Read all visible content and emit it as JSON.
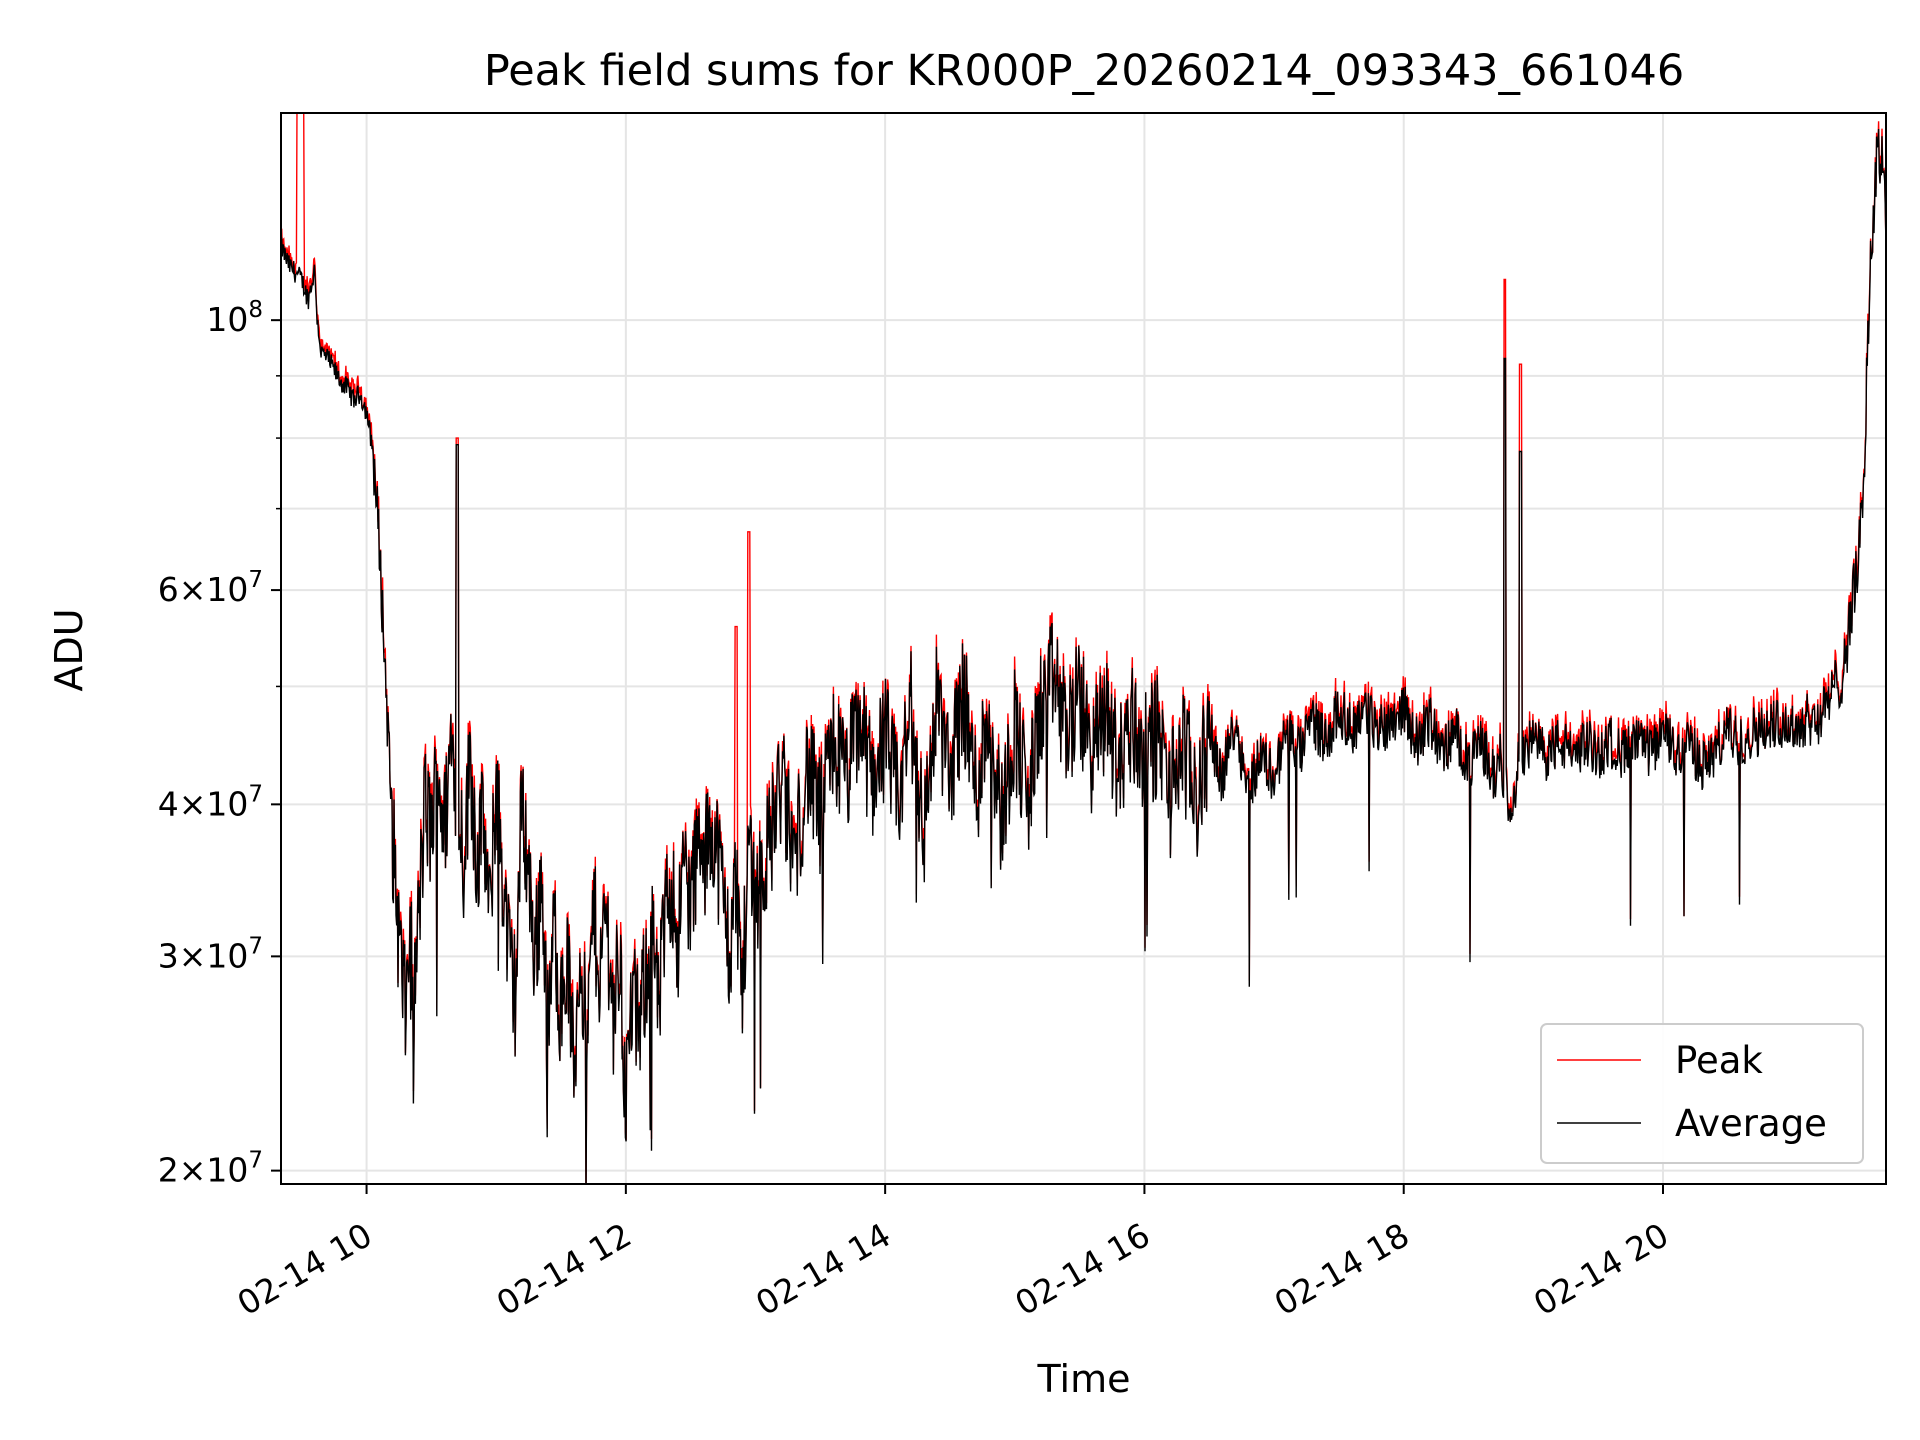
{
  "chart_data": {
    "type": "line",
    "title": "Peak field sums for KR000P_20260214_093343_661046",
    "xlabel": "Time",
    "ylabel": "ADU",
    "yscale": "log",
    "xlim": [
      9.34,
      21.72
    ],
    "ylim": [
      19500000,
      148000000
    ],
    "x_ticks": [
      {
        "value": 10,
        "label": "02-14 10"
      },
      {
        "value": 12,
        "label": "02-14 12"
      },
      {
        "value": 14,
        "label": "02-14 14"
      },
      {
        "value": 16,
        "label": "02-14 16"
      },
      {
        "value": 18,
        "label": "02-14 18"
      },
      {
        "value": 20,
        "label": "02-14 20"
      }
    ],
    "y_ticks": [
      {
        "value": 20000000,
        "mantissa": "2",
        "exp": "7"
      },
      {
        "value": 30000000,
        "mantissa": "3",
        "exp": "7"
      },
      {
        "value": 40000000,
        "mantissa": "4",
        "exp": "7"
      },
      {
        "value": 60000000,
        "mantissa": "6",
        "exp": "7"
      },
      {
        "value": 100000000,
        "base": "10",
        "exp": "8"
      }
    ],
    "y_minor_grid": [
      50000000,
      70000000,
      80000000,
      90000000
    ],
    "grid": true,
    "legend_position": "bottom-right",
    "series": [
      {
        "name": "Peak",
        "color": "#ff0000"
      },
      {
        "name": "Average",
        "color": "#000000"
      }
    ],
    "average_points": [
      [
        9.34,
        115000000
      ],
      [
        9.4,
        111000000
      ],
      [
        9.5,
        108000000
      ],
      [
        9.55,
        104000000
      ],
      [
        9.6,
        110000000
      ],
      [
        9.62,
        100000000
      ],
      [
        9.65,
        94000000
      ],
      [
        9.7,
        93000000
      ],
      [
        9.75,
        91000000
      ],
      [
        9.8,
        89000000
      ],
      [
        9.85,
        88000000
      ],
      [
        9.9,
        86000000
      ],
      [
        9.95,
        87000000
      ],
      [
        10.0,
        84000000
      ],
      [
        10.05,
        78000000
      ],
      [
        10.1,
        65000000
      ],
      [
        10.15,
        50000000
      ],
      [
        10.2,
        38000000
      ],
      [
        10.25,
        31000000
      ],
      [
        10.3,
        27000000
      ],
      [
        10.33,
        31000000
      ],
      [
        10.37,
        28000000
      ],
      [
        10.42,
        35000000
      ],
      [
        10.45,
        40000000
      ],
      [
        10.5,
        38000000
      ],
      [
        10.55,
        43000000
      ],
      [
        10.6,
        38000000
      ],
      [
        10.65,
        45000000
      ],
      [
        10.7,
        42000000
      ],
      [
        10.75,
        36000000
      ],
      [
        10.8,
        44000000
      ],
      [
        10.85,
        36000000
      ],
      [
        10.9,
        39000000
      ],
      [
        10.95,
        32000000
      ],
      [
        11.0,
        42000000
      ],
      [
        11.05,
        35000000
      ],
      [
        11.1,
        30000000
      ],
      [
        11.15,
        28000000
      ],
      [
        11.2,
        41000000
      ],
      [
        11.25,
        35000000
      ],
      [
        11.3,
        30000000
      ],
      [
        11.35,
        35000000
      ],
      [
        11.4,
        26000000
      ],
      [
        11.45,
        32000000
      ],
      [
        11.5,
        27000000
      ],
      [
        11.55,
        30000000
      ],
      [
        11.6,
        24000000
      ],
      [
        11.65,
        31000000
      ],
      [
        11.7,
        25000000
      ],
      [
        11.75,
        33000000
      ],
      [
        11.8,
        29000000
      ],
      [
        11.85,
        33000000
      ],
      [
        11.9,
        27000000
      ],
      [
        11.95,
        30000000
      ],
      [
        12.0,
        23000000
      ],
      [
        12.05,
        28000000
      ],
      [
        12.1,
        26000000
      ],
      [
        12.15,
        29000000
      ],
      [
        12.2,
        32000000
      ],
      [
        12.25,
        27000000
      ],
      [
        12.3,
        32000000
      ],
      [
        12.35,
        35000000
      ],
      [
        12.4,
        31000000
      ],
      [
        12.45,
        36000000
      ],
      [
        12.5,
        33000000
      ],
      [
        12.55,
        37000000
      ],
      [
        12.6,
        35000000
      ],
      [
        12.65,
        39000000
      ],
      [
        12.7,
        37000000
      ],
      [
        12.75,
        34000000
      ],
      [
        12.8,
        30000000
      ],
      [
        12.85,
        35000000
      ],
      [
        12.9,
        28000000
      ],
      [
        12.95,
        38000000
      ],
      [
        13.0,
        34000000
      ],
      [
        13.1,
        37000000
      ],
      [
        13.2,
        42000000
      ],
      [
        13.3,
        36000000
      ],
      [
        13.4,
        43000000
      ],
      [
        13.5,
        39000000
      ],
      [
        13.6,
        45000000
      ],
      [
        13.7,
        42000000
      ],
      [
        13.8,
        47000000
      ],
      [
        13.9,
        42000000
      ],
      [
        14.0,
        46000000
      ],
      [
        14.1,
        40000000
      ],
      [
        14.2,
        48000000
      ],
      [
        14.3,
        38000000
      ],
      [
        14.4,
        49000000
      ],
      [
        14.5,
        42000000
      ],
      [
        14.6,
        50000000
      ],
      [
        14.7,
        41000000
      ],
      [
        14.8,
        48000000
      ],
      [
        14.9,
        39000000
      ],
      [
        15.0,
        47000000
      ],
      [
        15.1,
        40000000
      ],
      [
        15.2,
        48000000
      ],
      [
        15.3,
        51000000
      ],
      [
        15.4,
        46000000
      ],
      [
        15.5,
        49000000
      ],
      [
        15.6,
        44000000
      ],
      [
        15.7,
        48000000
      ],
      [
        15.8,
        43000000
      ],
      [
        15.9,
        47000000
      ],
      [
        16.0,
        44000000
      ],
      [
        16.1,
        46000000
      ],
      [
        16.2,
        41000000
      ],
      [
        16.3,
        45000000
      ],
      [
        16.4,
        40000000
      ],
      [
        16.5,
        46000000
      ],
      [
        16.6,
        42000000
      ],
      [
        16.7,
        47000000
      ],
      [
        16.8,
        41000000
      ],
      [
        16.9,
        44000000
      ],
      [
        17.0,
        42000000
      ],
      [
        17.1,
        46000000
      ],
      [
        17.2,
        44000000
      ],
      [
        17.3,
        47000000
      ],
      [
        17.4,
        45000000
      ],
      [
        17.5,
        48000000
      ],
      [
        17.6,
        46000000
      ],
      [
        17.7,
        48000000
      ],
      [
        17.8,
        46000000
      ],
      [
        17.9,
        47000000
      ],
      [
        18.0,
        48000000
      ],
      [
        18.1,
        45000000
      ],
      [
        18.2,
        47000000
      ],
      [
        18.3,
        44000000
      ],
      [
        18.4,
        46000000
      ],
      [
        18.5,
        43000000
      ],
      [
        18.6,
        45000000
      ],
      [
        18.7,
        42000000
      ],
      [
        18.75,
        44000000
      ],
      [
        18.8,
        40000000
      ],
      [
        18.85,
        41000000
      ],
      [
        18.9,
        44000000
      ],
      [
        19.0,
        45000000
      ],
      [
        19.1,
        44000000
      ],
      [
        19.2,
        45000000
      ],
      [
        19.3,
        44000000
      ],
      [
        19.4,
        45000000
      ],
      [
        19.5,
        44000000
      ],
      [
        19.6,
        45000000
      ],
      [
        19.7,
        44000000
      ],
      [
        19.8,
        45000000
      ],
      [
        19.9,
        44000000
      ],
      [
        20.0,
        46000000
      ],
      [
        20.1,
        44000000
      ],
      [
        20.2,
        45000000
      ],
      [
        20.3,
        43000000
      ],
      [
        20.4,
        44000000
      ],
      [
        20.5,
        46000000
      ],
      [
        20.6,
        45000000
      ],
      [
        20.7,
        46000000
      ],
      [
        20.8,
        46000000
      ],
      [
        20.9,
        47000000
      ],
      [
        21.0,
        46000000
      ],
      [
        21.1,
        47000000
      ],
      [
        21.2,
        47000000
      ],
      [
        21.3,
        49000000
      ],
      [
        21.4,
        52000000
      ],
      [
        21.45,
        58000000
      ],
      [
        21.5,
        62000000
      ],
      [
        21.55,
        75000000
      ],
      [
        21.6,
        112000000
      ],
      [
        21.65,
        135000000
      ],
      [
        21.7,
        138000000
      ],
      [
        21.72,
        120000000
      ]
    ]
  }
}
